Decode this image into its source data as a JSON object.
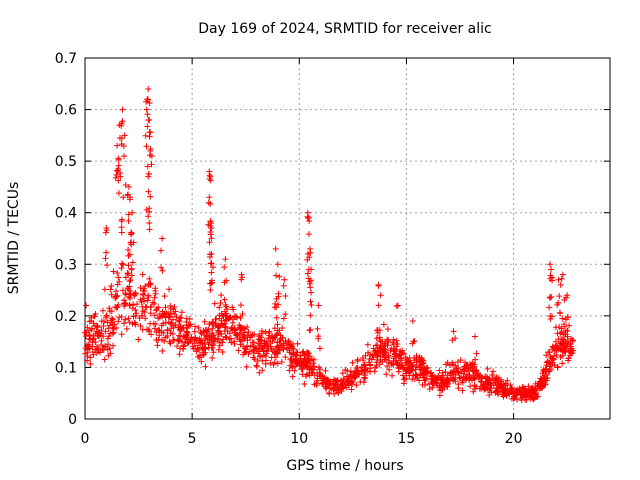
{
  "chart_data": {
    "type": "scatter",
    "title": "Day 169 of 2024, SRMTID for receiver alic",
    "xlabel": "GPS time / hours",
    "ylabel": "SRMTID / TECUs",
    "xlim": [
      0,
      24.5
    ],
    "ylim": [
      0,
      0.7
    ],
    "xticks": [
      0,
      5,
      10,
      15,
      20
    ],
    "yticks": [
      0,
      0.1,
      0.2,
      0.3,
      0.4,
      0.5,
      0.6,
      0.7
    ],
    "xtick_labels": [
      "0",
      "5",
      "10",
      "15",
      "20"
    ],
    "ytick_labels": [
      "0",
      "0.1",
      "0.2",
      "0.3",
      "0.4",
      "0.5",
      "0.6",
      "0.7"
    ],
    "grid": true,
    "marker": "+",
    "color": "#ff0000",
    "data_extent": [
      0,
      22.8
    ],
    "envelope": {
      "hours": [
        0,
        0.5,
        1.0,
        1.5,
        2.0,
        2.5,
        3.0,
        3.5,
        4.0,
        4.5,
        5.0,
        5.5,
        6.0,
        6.5,
        7.0,
        7.5,
        8.0,
        8.5,
        9.0,
        9.5,
        10.0,
        10.5,
        11.0,
        11.5,
        12.0,
        12.5,
        13.0,
        13.5,
        14.0,
        14.5,
        15.0,
        15.5,
        16.0,
        16.5,
        17.0,
        17.5,
        18.0,
        18.5,
        19.0,
        19.5,
        20.0,
        20.5,
        21.0,
        21.5,
        22.0,
        22.5,
        22.8
      ],
      "center": [
        0.14,
        0.17,
        0.17,
        0.22,
        0.25,
        0.22,
        0.22,
        0.19,
        0.19,
        0.17,
        0.15,
        0.14,
        0.17,
        0.19,
        0.18,
        0.15,
        0.13,
        0.14,
        0.15,
        0.13,
        0.11,
        0.1,
        0.08,
        0.06,
        0.07,
        0.08,
        0.1,
        0.12,
        0.14,
        0.12,
        0.1,
        0.1,
        0.08,
        0.07,
        0.08,
        0.09,
        0.09,
        0.07,
        0.07,
        0.06,
        0.05,
        0.05,
        0.05,
        0.09,
        0.14,
        0.15,
        0.13
      ],
      "spread": [
        0.06,
        0.07,
        0.08,
        0.1,
        0.12,
        0.09,
        0.1,
        0.08,
        0.07,
        0.06,
        0.06,
        0.06,
        0.07,
        0.07,
        0.06,
        0.06,
        0.05,
        0.06,
        0.06,
        0.05,
        0.05,
        0.05,
        0.03,
        0.025,
        0.03,
        0.035,
        0.04,
        0.05,
        0.06,
        0.05,
        0.04,
        0.04,
        0.035,
        0.03,
        0.035,
        0.04,
        0.04,
        0.03,
        0.03,
        0.025,
        0.02,
        0.02,
        0.02,
        0.04,
        0.06,
        0.06,
        0.05
      ],
      "density_per_hour": 70
    },
    "peaks": [
      {
        "x": 1.6,
        "y": 0.57
      },
      {
        "x": 1.75,
        "y": 0.6
      },
      {
        "x": 1.85,
        "y": 0.55
      },
      {
        "x": 1.5,
        "y": 0.53
      },
      {
        "x": 1.65,
        "y": 0.47
      },
      {
        "x": 2.05,
        "y": 0.45
      },
      {
        "x": 2.1,
        "y": 0.43
      },
      {
        "x": 2.2,
        "y": 0.4
      },
      {
        "x": 1.0,
        "y": 0.37
      },
      {
        "x": 2.9,
        "y": 0.62
      },
      {
        "x": 2.95,
        "y": 0.64
      },
      {
        "x": 3.0,
        "y": 0.58
      },
      {
        "x": 3.05,
        "y": 0.52
      },
      {
        "x": 2.95,
        "y": 0.47
      },
      {
        "x": 3.0,
        "y": 0.38
      },
      {
        "x": 3.6,
        "y": 0.35
      },
      {
        "x": 5.8,
        "y": 0.48
      },
      {
        "x": 5.85,
        "y": 0.47
      },
      {
        "x": 5.8,
        "y": 0.43
      },
      {
        "x": 5.9,
        "y": 0.37
      },
      {
        "x": 5.9,
        "y": 0.32
      },
      {
        "x": 6.55,
        "y": 0.31
      },
      {
        "x": 7.3,
        "y": 0.28
      },
      {
        "x": 8.9,
        "y": 0.33
      },
      {
        "x": 9.0,
        "y": 0.3
      },
      {
        "x": 9.3,
        "y": 0.27
      },
      {
        "x": 10.4,
        "y": 0.4
      },
      {
        "x": 10.45,
        "y": 0.39
      },
      {
        "x": 10.5,
        "y": 0.33
      },
      {
        "x": 10.55,
        "y": 0.29
      },
      {
        "x": 10.9,
        "y": 0.22
      },
      {
        "x": 13.7,
        "y": 0.26
      },
      {
        "x": 13.8,
        "y": 0.24
      },
      {
        "x": 14.6,
        "y": 0.22
      },
      {
        "x": 15.3,
        "y": 0.19
      },
      {
        "x": 17.2,
        "y": 0.17
      },
      {
        "x": 18.2,
        "y": 0.16
      },
      {
        "x": 21.7,
        "y": 0.3
      },
      {
        "x": 21.75,
        "y": 0.29
      },
      {
        "x": 22.1,
        "y": 0.27
      },
      {
        "x": 22.3,
        "y": 0.28
      },
      {
        "x": 22.2,
        "y": 0.26
      },
      {
        "x": 22.5,
        "y": 0.24
      },
      {
        "x": 0.05,
        "y": 0.22
      }
    ]
  }
}
